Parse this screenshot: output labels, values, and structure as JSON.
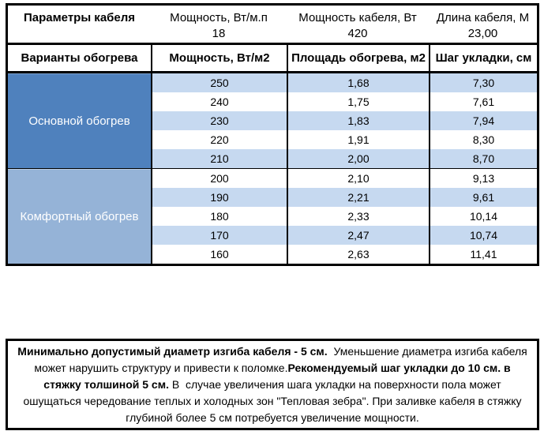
{
  "colors": {
    "primary_blue": "#4f81bd",
    "light_blue": "#95b3d7",
    "band_blue": "#c6d9f0",
    "border": "#000000"
  },
  "top_table": {
    "title": "Параметры кабеля",
    "columns": [
      {
        "header": "Мощность, Вт/м.п",
        "value": "18"
      },
      {
        "header": "Мощность кабеля, Вт",
        "value": "420"
      },
      {
        "header": "Длина кабеля, М",
        "value": "23,00"
      }
    ]
  },
  "main_table": {
    "headers": [
      "Варианты обогрева",
      "Мощность, Вт/м2",
      "Площадь обогрева, м2",
      "Шаг укладки, см"
    ],
    "sections": [
      {
        "label": "Основной обогрев",
        "rows": [
          [
            "250",
            "1,68",
            "7,30"
          ],
          [
            "240",
            "1,75",
            "7,61"
          ],
          [
            "230",
            "1,83",
            "7,94"
          ],
          [
            "220",
            "1,91",
            "8,30"
          ],
          [
            "210",
            "2,00",
            "8,70"
          ]
        ]
      },
      {
        "label": "Комфортный обогрев",
        "rows": [
          [
            "200",
            "2,10",
            "9,13"
          ],
          [
            "190",
            "2,21",
            "9,61"
          ],
          [
            "180",
            "2,33",
            "10,14"
          ],
          [
            "170",
            "2,47",
            "10,74"
          ],
          [
            "160",
            "2,63",
            "11,41"
          ]
        ]
      }
    ]
  },
  "note": {
    "segments": [
      {
        "bold": true,
        "text": "Минимально допустимый диаметр изгиба кабеля - 5 см."
      },
      {
        "bold": false,
        "text": "  Уменьшение диаметра изгиба кабеля может нарушить структуру и привести к поломке."
      },
      {
        "bold": true,
        "text": "Рекомендуемый шаг укладки до 10 см. в стяжку толшиной 5 см."
      },
      {
        "bold": false,
        "text": " В  случае увеличения шага укладки на поверхности пола может ошущаться чередование теплых и холодных зон \"Тепловая зебра\". При заливке кабеля в стяжку глубиной более 5 см потребуется увеличение мощности."
      }
    ]
  }
}
